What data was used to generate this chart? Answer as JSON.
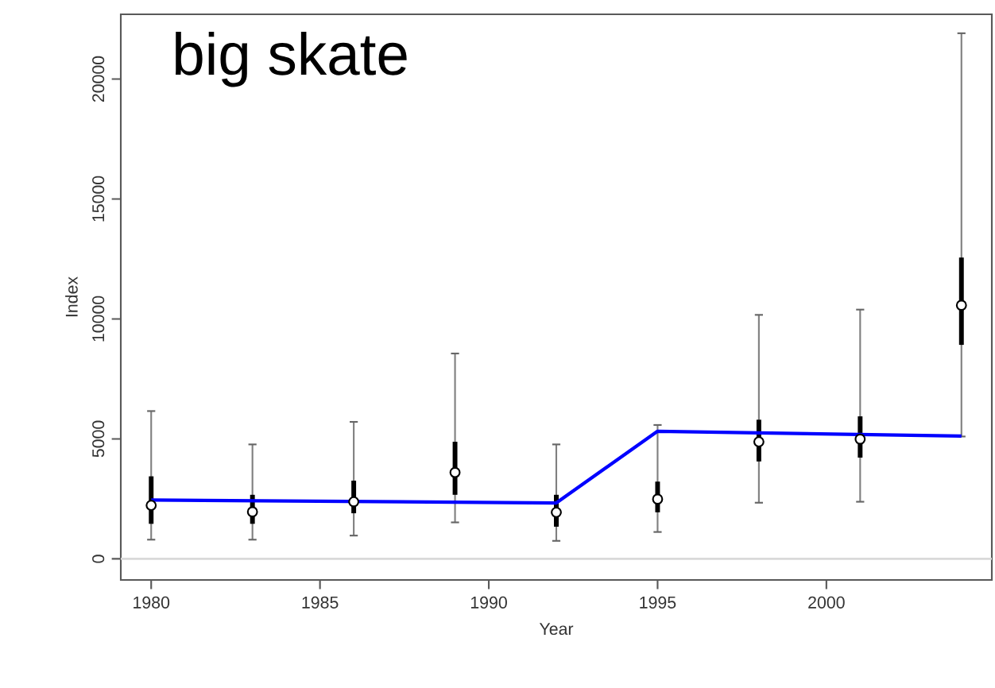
{
  "chart_data": {
    "type": "scatter",
    "title": "big skate",
    "xlabel": "Year",
    "ylabel": "Index",
    "xlim": [
      1979.1,
      2004.9
    ],
    "xticks": [
      1980,
      1985,
      1990,
      1995,
      2000
    ],
    "ylim": [
      -880,
      22700
    ],
    "yticks": [
      0,
      5000,
      10000,
      15000,
      20000
    ],
    "ref_lines": [
      {
        "axis": "y",
        "value": 0,
        "color": "#d9d9d9"
      }
    ],
    "series": [
      {
        "type": "bar",
        "color": "#000000",
        "x": [
          1980,
          1983,
          1986,
          1989,
          1992,
          1995,
          1998,
          2001,
          2004
        ],
        "base": [
          1460,
          1460,
          1900,
          2670,
          1340,
          1940,
          4060,
          4220,
          8920
        ],
        "values": [
          1980,
          1210,
          1360,
          2210,
          1330,
          1280,
          1740,
          1720,
          3640
        ]
      },
      {
        "type": "line",
        "color": "#0000ff",
        "x": [
          1980,
          1992,
          1995,
          2004
        ],
        "values": [
          2450,
          2330,
          5320,
          5120
        ]
      },
      {
        "color": "#000000",
        "marker": "circle",
        "x": [
          1980,
          1983,
          1986,
          1989,
          1992,
          1995,
          1998,
          2001,
          2004
        ],
        "values": [
          2230,
          1960,
          2380,
          3600,
          1940,
          2490,
          4880,
          4990,
          10570
        ],
        "errors": [
          [
            800,
            6160
          ],
          [
            800,
            4770
          ],
          [
            970,
            5710
          ],
          [
            1520,
            8560
          ],
          [
            750,
            4770
          ],
          [
            1120,
            5580
          ],
          [
            2340,
            10170
          ],
          [
            2380,
            10390
          ],
          [
            5100,
            21910
          ]
        ]
      }
    ]
  }
}
